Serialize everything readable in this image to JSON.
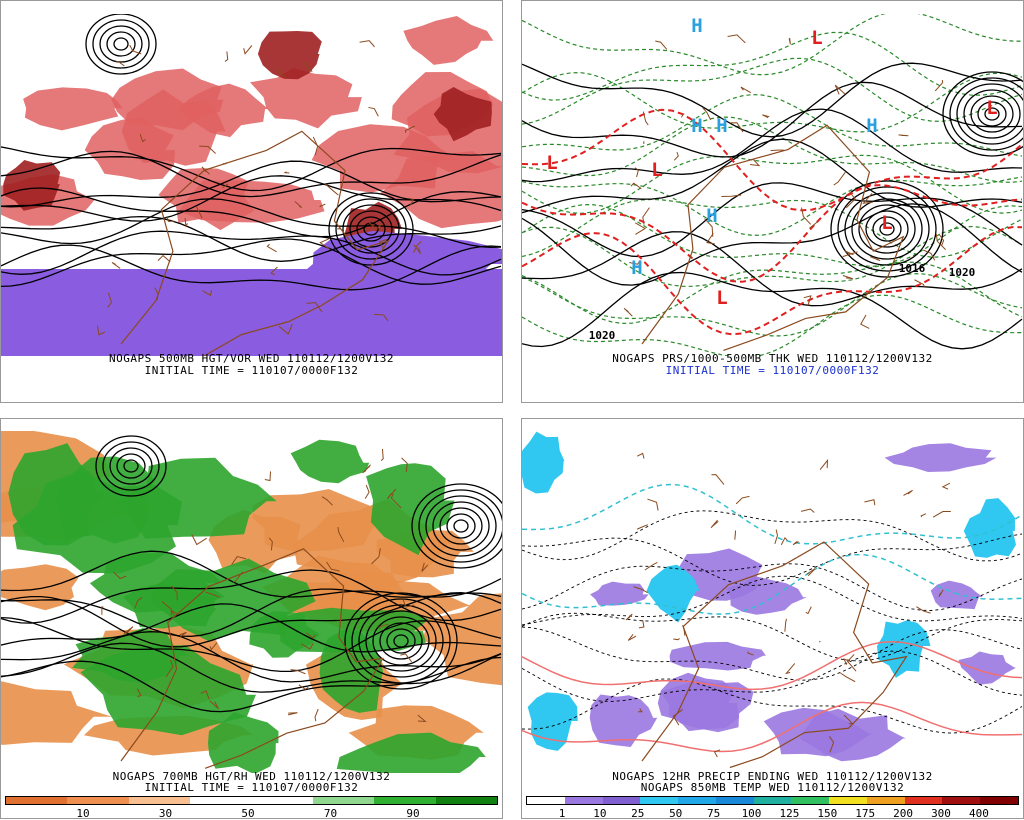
{
  "panels": [
    {
      "caption": "NOGAPS 500MB HGT/VOR WED 110112/1200V132",
      "subcaption": "INITIAL TIME = 110107/0000F132"
    },
    {
      "caption": "NOGAPS PRS/1000-500MB THK WED 110112/1200V132",
      "subcaption": "INITIAL TIME = 110107/0000F132",
      "labels": [
        "H",
        "H",
        "H",
        "H",
        "H",
        "H",
        "L",
        "L",
        "L",
        "L",
        "L",
        "L",
        "1020",
        "1020",
        "1016"
      ]
    },
    {
      "caption": "NOGAPS 700MB HGT/RH WED 110112/1200V132",
      "subcaption": "INITIAL TIME = 110107/0000F132"
    },
    {
      "caption": "NOGAPS 12HR PRECIP ENDING WED 110112/1200V132",
      "subcaption": "NOGAPS 850MB TEMP WED 110112/1200V132"
    }
  ],
  "colorbars": {
    "rh": [
      10,
      30,
      50,
      70,
      90
    ],
    "precip": [
      1,
      10,
      25,
      50,
      75,
      100,
      125,
      150,
      175,
      200,
      300,
      400
    ]
  }
}
